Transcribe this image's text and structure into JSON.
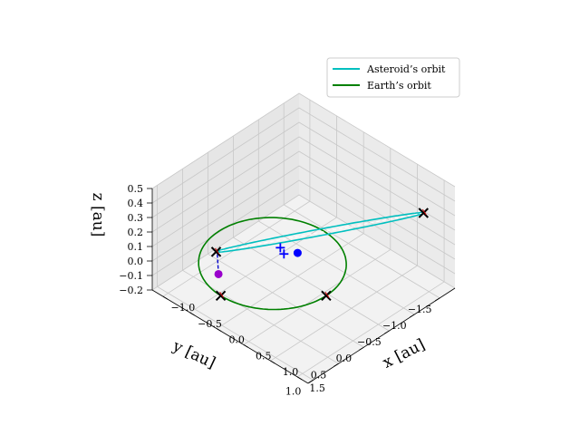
{
  "chart_data": {
    "type": "line3d",
    "title": "",
    "xlabel": "x [au]",
    "ylabel": "y [au]",
    "zlabel": "z [au]",
    "xlim": [
      -1.2,
      1.7
    ],
    "ylim": [
      -1.8,
      1.1
    ],
    "zlim": [
      -0.2,
      0.5
    ],
    "x_ticks": [
      "−1.0",
      "−0.5",
      "0.0",
      "0.5",
      "1.0",
      "1.5"
    ],
    "y_ticks": [
      "1.0",
      "0.5",
      "0.0",
      "−0.5",
      "−1.0",
      "−1.5"
    ],
    "z_ticks": [
      "−0.2",
      "−0.1",
      "0.0",
      "0.1",
      "0.2",
      "0.3",
      "0.4",
      "0.5"
    ],
    "grid": true,
    "legend_position": "upper right",
    "legend": [
      {
        "label": "Asteroid’s orbit",
        "color": "#00bfbf"
      },
      {
        "label": "Earth’s orbit",
        "color": "#008000"
      }
    ],
    "series": [
      {
        "name": "Asteroid’s orbit",
        "color": "#00bfbf",
        "kind": "ellipse",
        "a": 0.9,
        "e": 0.96,
        "inc_deg": 25,
        "peri_xyz": [
          -0.03,
          0.06,
          0.02
        ],
        "peri_dir": [
          0.74,
          -0.62,
          0.27
        ]
      },
      {
        "name": "Earth’s orbit",
        "color": "#008000",
        "kind": "circle",
        "r": 1.0
      }
    ],
    "markers": [
      {
        "kind": "x",
        "color": "#000000",
        "pos": [
          1.68,
          -1.2,
          0.45
        ]
      },
      {
        "kind": "x",
        "color": "#000000",
        "pos": [
          -0.02,
          1.0,
          0.0
        ]
      },
      {
        "kind": "x",
        "color": "#000000",
        "pos": [
          1.0,
          0.0,
          0.0
        ]
      },
      {
        "kind": "x",
        "color": "#000000",
        "pos": [
          -1.0,
          0.05,
          -0.13
        ]
      },
      {
        "kind": "plus",
        "color": "#0000ff",
        "pos": [
          0.1,
          -0.05,
          0.12
        ]
      },
      {
        "kind": "plus",
        "color": "#0000ff",
        "pos": [
          0.12,
          -0.1,
          0.07
        ]
      },
      {
        "kind": "dot",
        "color": "#0000ff",
        "pos": [
          0.28,
          -0.2,
          0.09
        ]
      },
      {
        "kind": "dot",
        "color": "#9900cc",
        "pos": [
          -0.58,
          0.45,
          -0.1
        ]
      }
    ]
  }
}
